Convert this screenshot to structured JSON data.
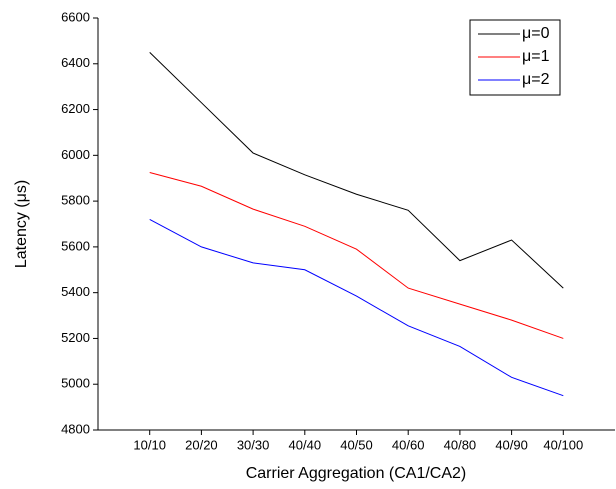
{
  "chart_data": {
    "type": "line",
    "x_label": "Carrier Aggregation (CA1/CA2)",
    "y_label": "Latency (μs)",
    "categories": [
      "10/10",
      "20/20",
      "30/30",
      "40/40",
      "40/50",
      "40/60",
      "40/80",
      "40/90",
      "40/100"
    ],
    "series": [
      {
        "name": "μ=0",
        "color": "#000000",
        "values": [
          6450,
          6230,
          6010,
          5915,
          5830,
          5760,
          5540,
          5630,
          5420
        ]
      },
      {
        "name": "μ=1",
        "color": "#ff0000",
        "values": [
          5925,
          5865,
          5765,
          5690,
          5590,
          5420,
          5350,
          5280,
          5200
        ]
      },
      {
        "name": "μ=2",
        "color": "#0000ff",
        "values": [
          5720,
          5600,
          5530,
          5500,
          5385,
          5255,
          5165,
          5030,
          4950
        ]
      }
    ],
    "ylim": [
      4800,
      6600
    ],
    "yticks": [
      4800,
      5000,
      5200,
      5400,
      5600,
      5800,
      6000,
      6200,
      6400,
      6600
    ],
    "legend": "upper right"
  }
}
